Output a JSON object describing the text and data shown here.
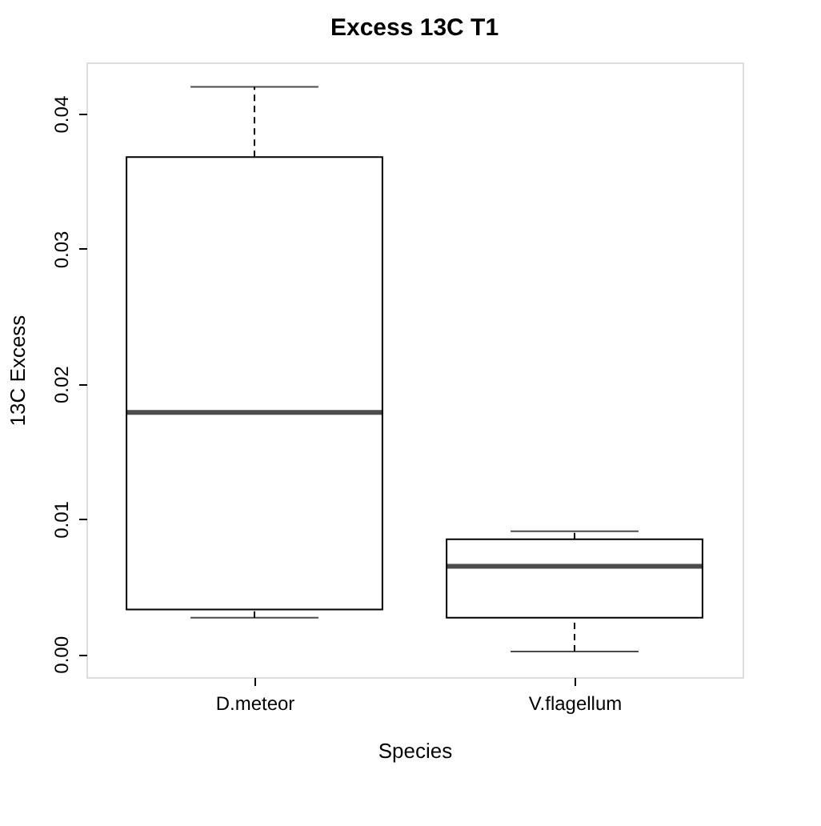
{
  "chart_data": {
    "type": "box",
    "title": "Excess 13C T1",
    "xlabel": "Species",
    "ylabel": "13C Excess",
    "categories": [
      "D.meteor",
      "V.flagellum"
    ],
    "boxes": [
      {
        "low": 0.0027,
        "q1": 0.0033,
        "median": 0.0179,
        "q3": 0.0368,
        "high": 0.042
      },
      {
        "low": 0.0002,
        "q1": 0.0027,
        "median": 0.0065,
        "q3": 0.0085,
        "high": 0.0091
      }
    ],
    "ylim": [
      -0.0017,
      0.0438
    ],
    "yticks": [
      {
        "value": 0,
        "label": "0.00"
      },
      {
        "value": 0.01,
        "label": "0.01"
      },
      {
        "value": 0.02,
        "label": "0.02"
      },
      {
        "value": 0.03,
        "label": "0.03"
      },
      {
        "value": 0.04,
        "label": "0.04"
      }
    ],
    "grid": false
  }
}
